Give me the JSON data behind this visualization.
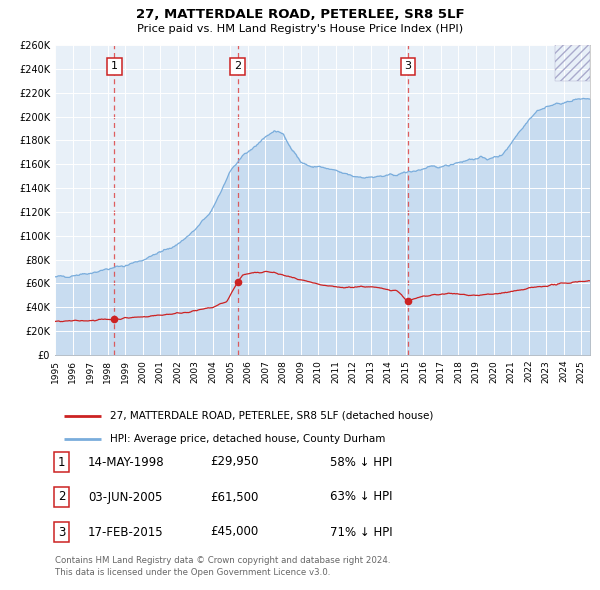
{
  "title": "27, MATTERDALE ROAD, PETERLEE, SR8 5LF",
  "subtitle": "Price paid vs. HM Land Registry's House Price Index (HPI)",
  "ylim": [
    0,
    260000
  ],
  "xlim_start": 1995.0,
  "xlim_end": 2025.5,
  "ytick_vals": [
    0,
    20000,
    40000,
    60000,
    80000,
    100000,
    120000,
    140000,
    160000,
    180000,
    200000,
    220000,
    240000,
    260000
  ],
  "ytick_labels": [
    "£0",
    "£20K",
    "£40K",
    "£60K",
    "£80K",
    "£100K",
    "£120K",
    "£140K",
    "£160K",
    "£180K",
    "£200K",
    "£220K",
    "£240K",
    "£260K"
  ],
  "hpi_color": "#7aaddc",
  "hpi_fill_color": "#c8dcf0",
  "price_color": "#cc2222",
  "bg_color": "#e8f0f8",
  "grid_color": "#d0d8e4",
  "sale1_x": 1998.37,
  "sale1_y": 29950,
  "sale2_x": 2005.42,
  "sale2_y": 61500,
  "sale3_x": 2015.12,
  "sale3_y": 45000,
  "sale1_date": "14-MAY-1998",
  "sale1_price": "£29,950",
  "sale1_hpi": "58% ↓ HPI",
  "sale2_date": "03-JUN-2005",
  "sale2_price": "£61,500",
  "sale2_hpi": "63% ↓ HPI",
  "sale3_date": "17-FEB-2015",
  "sale3_price": "£45,000",
  "sale3_hpi": "71% ↓ HPI",
  "legend_line1": "27, MATTERDALE ROAD, PETERLEE, SR8 5LF (detached house)",
  "legend_line2": "HPI: Average price, detached house, County Durham",
  "footer1": "Contains HM Land Registry data © Crown copyright and database right 2024.",
  "footer2": "This data is licensed under the Open Government Licence v3.0."
}
